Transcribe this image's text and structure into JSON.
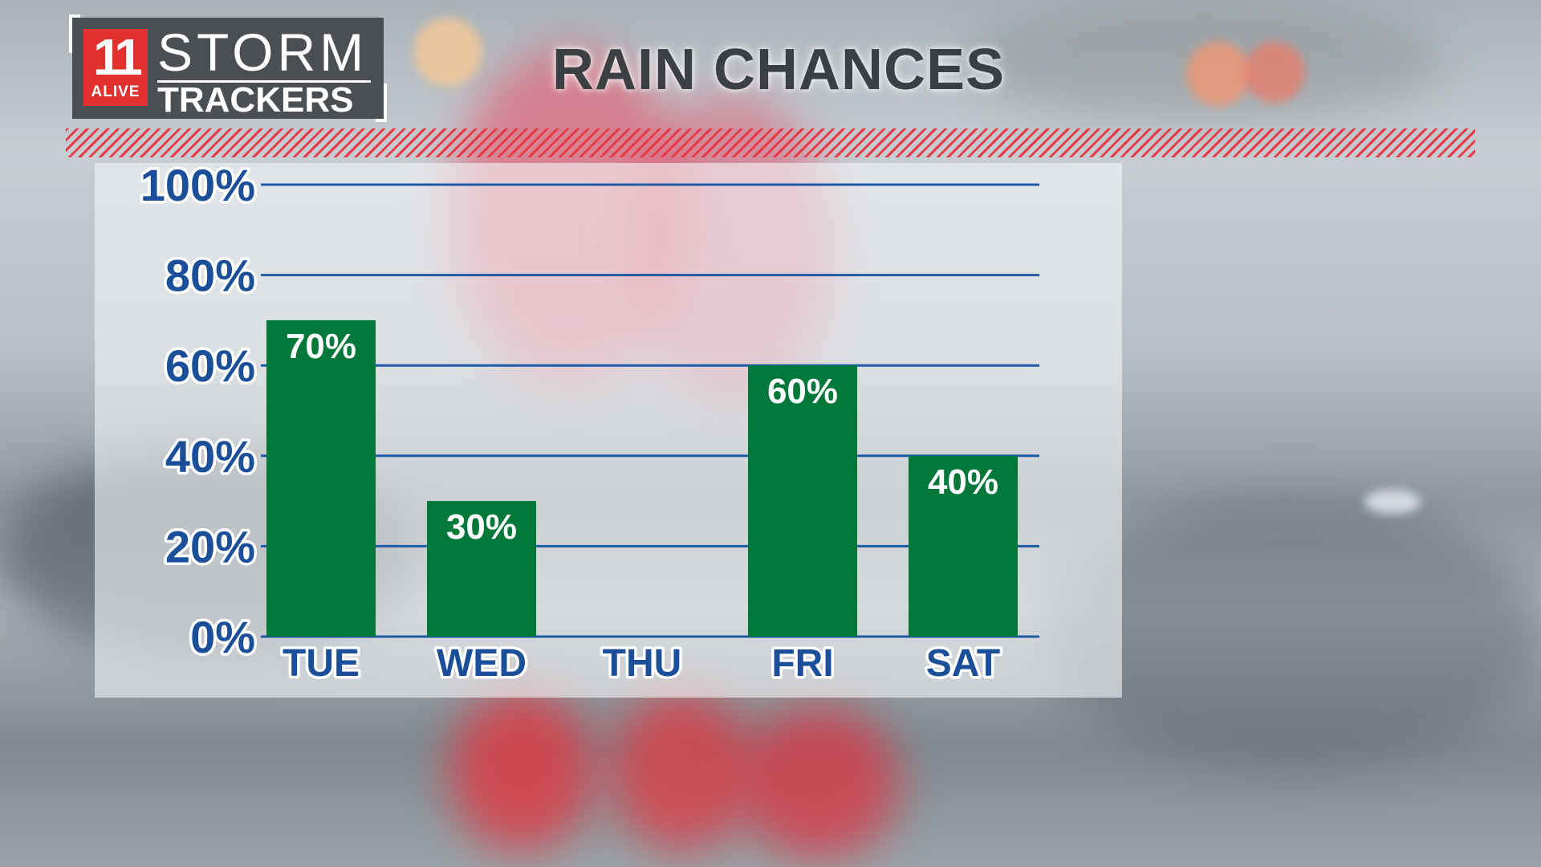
{
  "header": {
    "logo_number": "11",
    "logo_alive": "ALIVE",
    "logo_storm": "STORM",
    "logo_trackers": "TRACKERS",
    "title": "RAIN CHANCES"
  },
  "colors": {
    "bar": "#00783a",
    "gridline": "#1f5aa8",
    "axis_text": "#1b4f99",
    "stripe": "#e63a46",
    "logo_red": "#e0312f"
  },
  "chart_data": {
    "type": "bar",
    "title": "RAIN CHANCES",
    "categories": [
      "TUE",
      "WED",
      "THU",
      "FRI",
      "SAT"
    ],
    "values": [
      70,
      30,
      null,
      60,
      40
    ],
    "data_labels": [
      "70%",
      "30%",
      "",
      "60%",
      "40%"
    ],
    "y_ticks": [
      "0%",
      "20%",
      "40%",
      "60%",
      "80%",
      "100%"
    ],
    "ylim": [
      0,
      100
    ],
    "grid": true,
    "legend": "none"
  }
}
